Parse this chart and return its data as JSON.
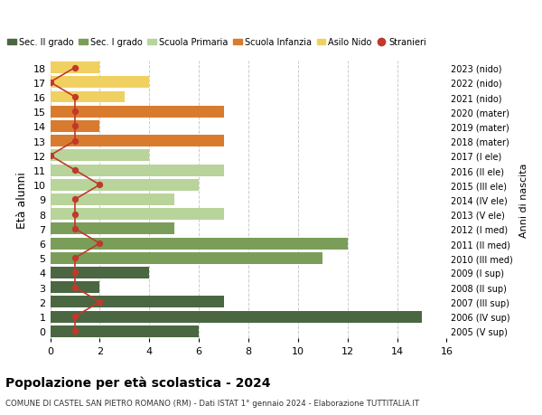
{
  "ages": [
    18,
    17,
    16,
    15,
    14,
    13,
    12,
    11,
    10,
    9,
    8,
    7,
    6,
    5,
    4,
    3,
    2,
    1,
    0
  ],
  "years": [
    "2005 (V sup)",
    "2006 (IV sup)",
    "2007 (III sup)",
    "2008 (II sup)",
    "2009 (I sup)",
    "2010 (III med)",
    "2011 (II med)",
    "2012 (I med)",
    "2013 (V ele)",
    "2014 (IV ele)",
    "2015 (III ele)",
    "2016 (II ele)",
    "2017 (I ele)",
    "2018 (mater)",
    "2019 (mater)",
    "2020 (mater)",
    "2021 (nido)",
    "2022 (nido)",
    "2023 (nido)"
  ],
  "bar_values": [
    6,
    15,
    7,
    2,
    4,
    11,
    12,
    5,
    7,
    5,
    6,
    7,
    4,
    7,
    2,
    7,
    3,
    4,
    2
  ],
  "stranieri": [
    1,
    1,
    2,
    1,
    1,
    1,
    2,
    1,
    1,
    1,
    2,
    1,
    0,
    1,
    1,
    1,
    1,
    0,
    1
  ],
  "bar_colors": [
    "#4a6741",
    "#4a6741",
    "#4a6741",
    "#4a6741",
    "#4a6741",
    "#7a9e5a",
    "#7a9e5a",
    "#7a9e5a",
    "#b8d49a",
    "#b8d49a",
    "#b8d49a",
    "#b8d49a",
    "#b8d49a",
    "#d97b2e",
    "#d97b2e",
    "#d97b2e",
    "#f0d060",
    "#f0d060",
    "#f0d060"
  ],
  "legend_labels": [
    "Sec. II grado",
    "Sec. I grado",
    "Scuola Primaria",
    "Scuola Infanzia",
    "Asilo Nido",
    "Stranieri"
  ],
  "legend_colors": [
    "#4a6741",
    "#7a9e5a",
    "#b8d49a",
    "#d97b2e",
    "#f0d060",
    "#c0392b"
  ],
  "stranieri_color": "#c0392b",
  "title": "Popolazione per età scolastica - 2024",
  "subtitle": "COMUNE DI CASTEL SAN PIETRO ROMANO (RM) - Dati ISTAT 1° gennaio 2024 - Elaborazione TUTTITALIA.IT",
  "ylabel": "Età alunni",
  "right_ylabel": "Anni di nascita",
  "xlim": [
    0,
    16
  ],
  "xticks": [
    0,
    2,
    4,
    6,
    8,
    10,
    12,
    14,
    16
  ],
  "background_color": "#ffffff",
  "grid_color": "#cccccc"
}
